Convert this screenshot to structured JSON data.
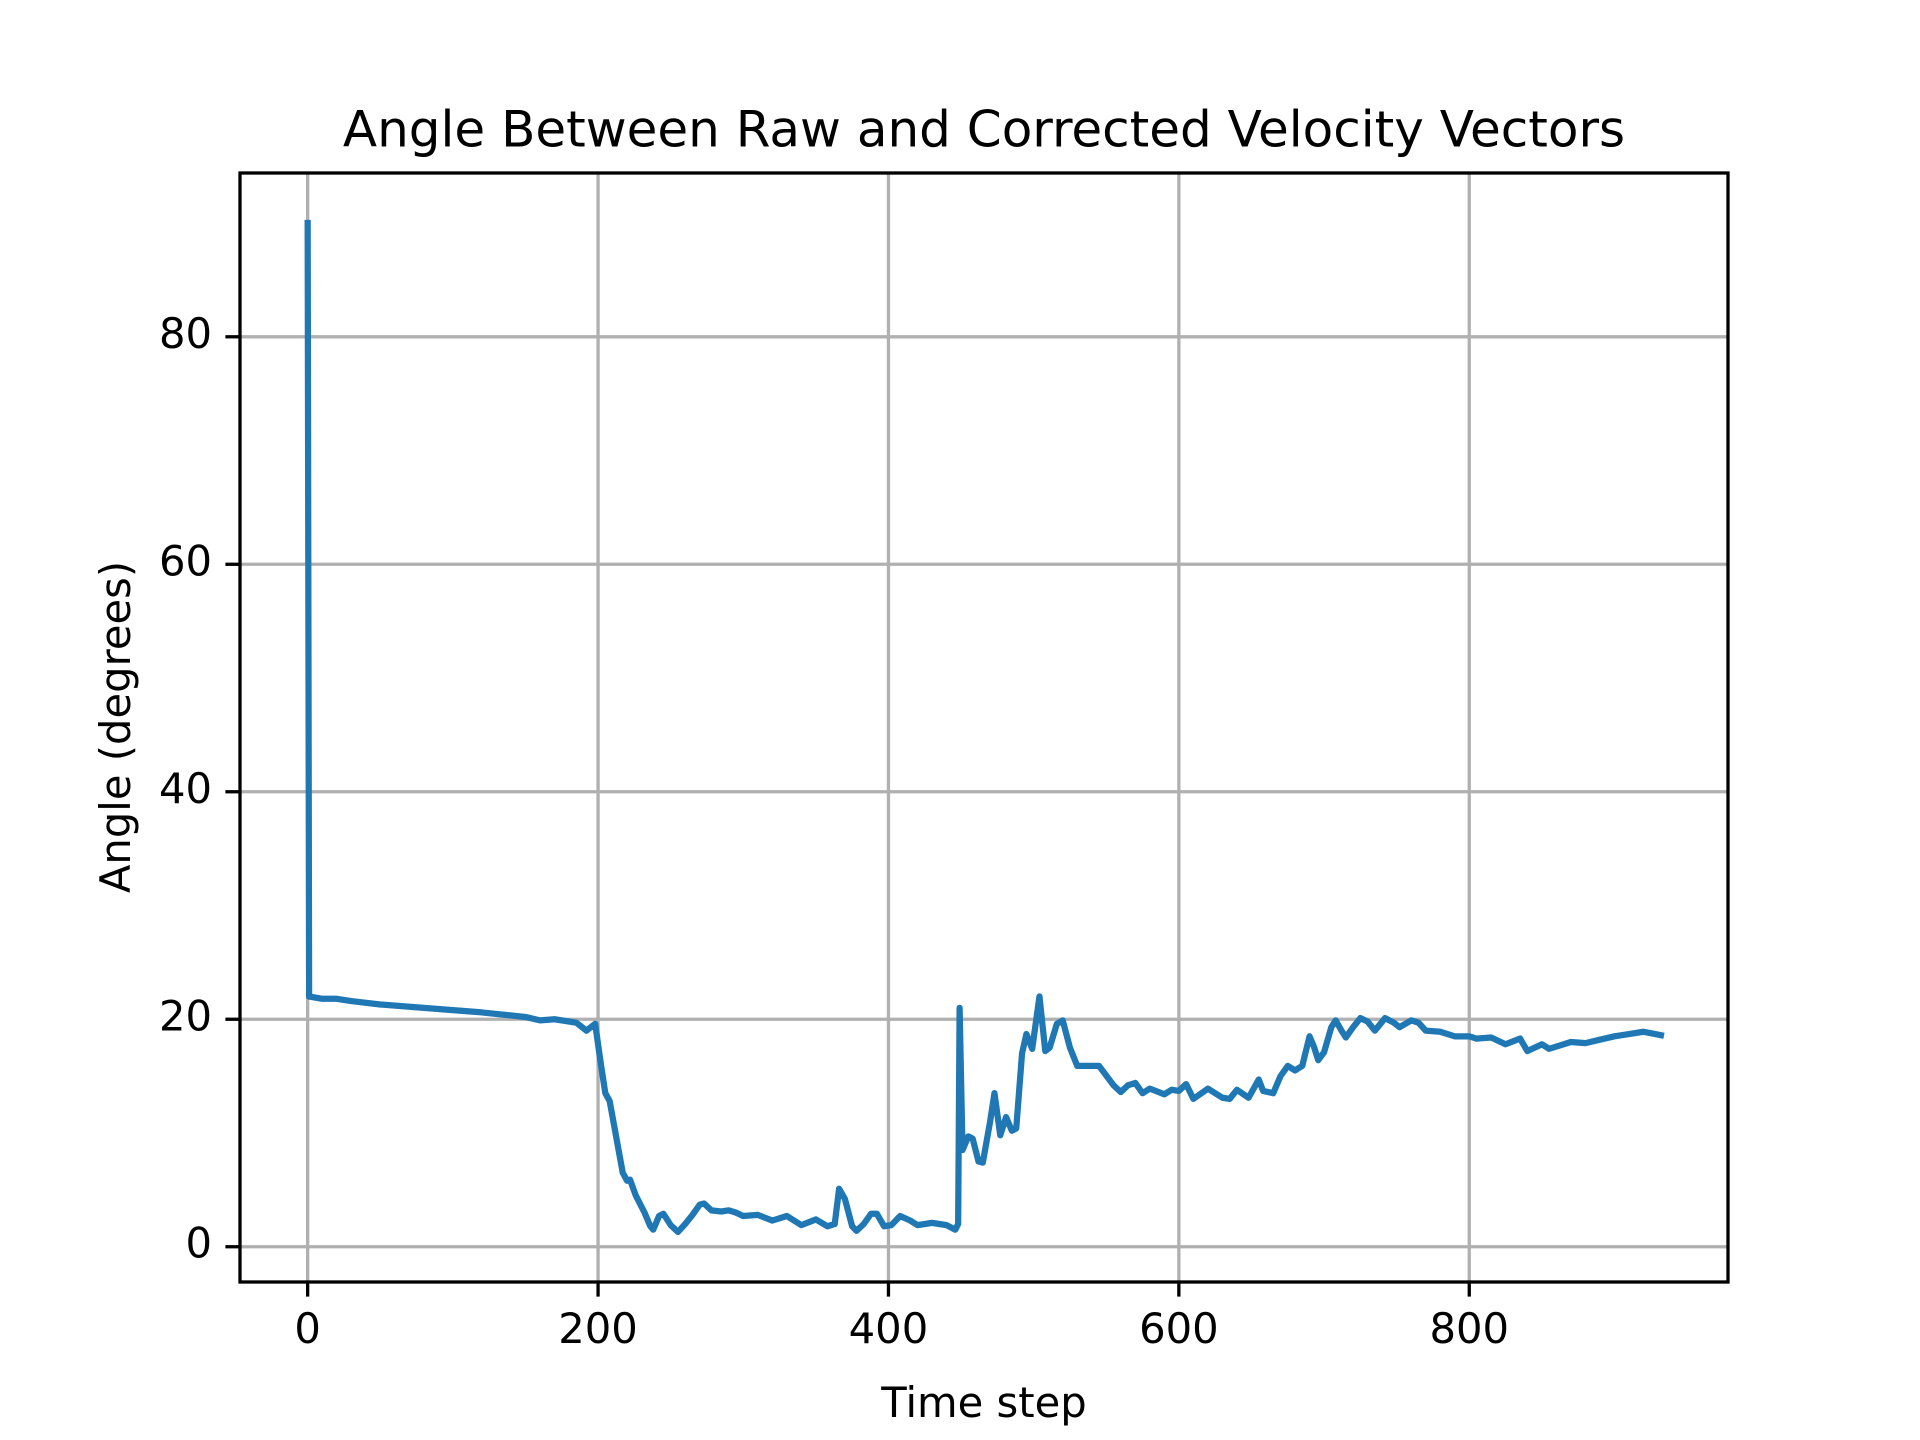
{
  "chart_data": {
    "type": "line",
    "title": "Angle Between Raw and Corrected Velocity Vectors",
    "x_label": "Time step",
    "y_label": "Angle (degrees)",
    "x": [
      0,
      1,
      10,
      20,
      30,
      50,
      80,
      100,
      120,
      150,
      160,
      170,
      185,
      192,
      198,
      202,
      205,
      208,
      212,
      217,
      220,
      222,
      226,
      232,
      236,
      238,
      242,
      245,
      250,
      255,
      260,
      265,
      270,
      273,
      278,
      285,
      290,
      295,
      300,
      310,
      320,
      330,
      340,
      350,
      358,
      363,
      366,
      370,
      375,
      378,
      383,
      388,
      392,
      397,
      402,
      408,
      415,
      420,
      430,
      440,
      446,
      448,
      449,
      451,
      455,
      458,
      462,
      465,
      470,
      473,
      477,
      481,
      485,
      488,
      492,
      495,
      499,
      504,
      508,
      511,
      516,
      520,
      525,
      530,
      535,
      545,
      555,
      560,
      565,
      570,
      575,
      580,
      590,
      595,
      600,
      605,
      610,
      620,
      630,
      635,
      640,
      648,
      655,
      658,
      665,
      670,
      675,
      680,
      685,
      690,
      693,
      696,
      700,
      705,
      708,
      712,
      715,
      720,
      725,
      730,
      735,
      742,
      748,
      752,
      760,
      765,
      770,
      780,
      790,
      800,
      805,
      815,
      825,
      835,
      840,
      850,
      855,
      860,
      870,
      880,
      890,
      900,
      910,
      920,
      932
    ],
    "series": [
      {
        "name": "Angle",
        "color": "#1f77b4",
        "values": [
          90,
          22,
          21.8,
          21.8,
          21.6,
          21.3,
          21.0,
          20.8,
          20.6,
          20.2,
          19.9,
          20.0,
          19.7,
          19.0,
          19.6,
          16,
          13.5,
          12.8,
          10,
          6.5,
          5.8,
          5.9,
          4.5,
          3,
          1.8,
          1.5,
          2.7,
          2.9,
          1.9,
          1.3,
          2,
          2.8,
          3.7,
          3.8,
          3.2,
          3.1,
          3.2,
          3.0,
          2.7,
          2.8,
          2.3,
          2.7,
          1.9,
          2.4,
          1.8,
          2.0,
          5.1,
          4.2,
          1.8,
          1.4,
          2.0,
          2.9,
          2.9,
          1.8,
          1.9,
          2.7,
          2.3,
          1.9,
          2.1,
          1.9,
          1.5,
          2,
          21,
          8.5,
          9.7,
          9.5,
          7.5,
          7.4,
          11,
          13.5,
          9.8,
          11.4,
          10.2,
          10.4,
          17,
          18.7,
          17.4,
          22,
          17.2,
          17.5,
          19.6,
          19.9,
          17.5,
          15.9,
          15.9,
          15.9,
          14.2,
          13.6,
          14.2,
          14.4,
          13.5,
          13.9,
          13.4,
          13.8,
          13.7,
          14.3,
          13.0,
          13.9,
          13.1,
          13.0,
          13.8,
          13.1,
          14.7,
          13.7,
          13.5,
          15,
          15.9,
          15.5,
          15.9,
          18.5,
          17.6,
          16.4,
          17.1,
          19.3,
          19.9,
          19,
          18.4,
          19.3,
          20.1,
          19.8,
          19.0,
          20.1,
          19.7,
          19.3,
          19.9,
          19.7,
          19.0,
          18.9,
          18.5,
          18.5,
          18.3,
          18.4,
          17.8,
          18.3,
          17.2,
          17.8,
          17.4,
          17.6,
          18.0,
          17.9,
          18.2,
          18.5,
          18.7,
          18.9,
          18.6
        ]
      }
    ],
    "xlim": [
      -46.6,
      978.2
    ],
    "ylim": [
      -3.1,
      94.4
    ],
    "xticks": [
      0,
      200,
      400,
      600,
      800
    ],
    "yticks": [
      0,
      20,
      40,
      60,
      80
    ],
    "grid": true
  }
}
